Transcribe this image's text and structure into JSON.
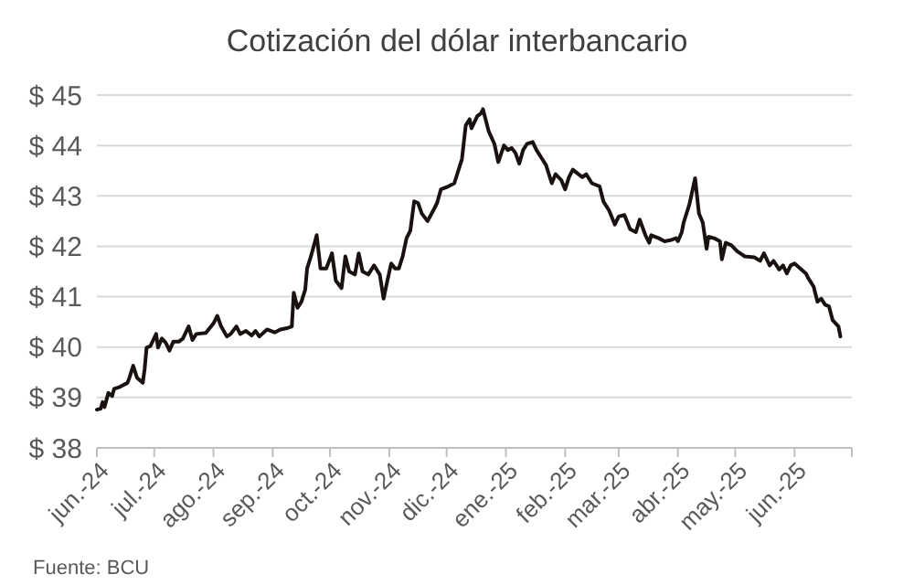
{
  "chart_data": {
    "type": "line",
    "title": "Cotización del dólar interbancario",
    "annotations": [
      "Fuente: BCU"
    ],
    "x": [
      "2024-06-01",
      "2024-06-03",
      "2024-06-04",
      "2024-06-05",
      "2024-06-07",
      "2024-06-09",
      "2024-06-10",
      "2024-06-13",
      "2024-06-17",
      "2024-06-18",
      "2024-06-20",
      "2024-06-22",
      "2024-06-25",
      "2024-06-26",
      "2024-06-27",
      "2024-06-29",
      "2024-07-02",
      "2024-07-03",
      "2024-07-05",
      "2024-07-07",
      "2024-07-09",
      "2024-07-11",
      "2024-07-14",
      "2024-07-16",
      "2024-07-19",
      "2024-07-21",
      "2024-07-23",
      "2024-07-28",
      "2024-08-01",
      "2024-08-03",
      "2024-08-05",
      "2024-08-08",
      "2024-08-10",
      "2024-08-13",
      "2024-08-15",
      "2024-08-18",
      "2024-08-21",
      "2024-08-23",
      "2024-08-25",
      "2024-08-29",
      "2024-09-02",
      "2024-09-05",
      "2024-09-09",
      "2024-09-11",
      "2024-09-12",
      "2024-09-14",
      "2024-09-16",
      "2024-09-18",
      "2024-09-19",
      "2024-09-21",
      "2024-09-24",
      "2024-09-26",
      "2024-09-29",
      "2024-10-02",
      "2024-10-04",
      "2024-10-07",
      "2024-10-09",
      "2024-10-11",
      "2024-10-14",
      "2024-10-16",
      "2024-10-18",
      "2024-10-21",
      "2024-10-24",
      "2024-10-27",
      "2024-10-29",
      "2024-10-31",
      "2024-11-02",
      "2024-11-04",
      "2024-11-06",
      "2024-11-08",
      "2024-11-10",
      "2024-11-12",
      "2024-11-14",
      "2024-11-16",
      "2024-11-18",
      "2024-11-21",
      "2024-11-24",
      "2024-11-26",
      "2024-11-28",
      "2024-12-02",
      "2024-12-05",
      "2024-12-09",
      "2024-12-11",
      "2024-12-13",
      "2024-12-14",
      "2024-12-17",
      "2024-12-19",
      "2024-12-20",
      "2024-12-23",
      "2024-12-26",
      "2024-12-28",
      "2024-12-31",
      "2025-01-02",
      "2025-01-04",
      "2025-01-06",
      "2025-01-08",
      "2025-01-10",
      "2025-01-12",
      "2025-01-15",
      "2025-01-17",
      "2025-01-20",
      "2025-01-22",
      "2025-01-25",
      "2025-01-27",
      "2025-01-30",
      "2025-02-01",
      "2025-02-03",
      "2025-02-05",
      "2025-02-08",
      "2025-02-10",
      "2025-02-12",
      "2025-02-15",
      "2025-02-19",
      "2025-02-21",
      "2025-02-24",
      "2025-02-27",
      "2025-03-01",
      "2025-03-04",
      "2025-03-07",
      "2025-03-10",
      "2025-03-12",
      "2025-03-15",
      "2025-03-17",
      "2025-03-18",
      "2025-03-22",
      "2025-03-25",
      "2025-03-28",
      "2025-03-31",
      "2025-04-01",
      "2025-04-03",
      "2025-04-04",
      "2025-04-07",
      "2025-04-10",
      "2025-04-12",
      "2025-04-14",
      "2025-04-16",
      "2025-04-17",
      "2025-04-20",
      "2025-04-23",
      "2025-04-24",
      "2025-04-26",
      "2025-04-29",
      "2025-05-02",
      "2025-05-06",
      "2025-05-11",
      "2025-05-14",
      "2025-05-16",
      "2025-05-19",
      "2025-05-21",
      "2025-05-24",
      "2025-05-26",
      "2025-05-28",
      "2025-05-30",
      "2025-06-01",
      "2025-06-04",
      "2025-06-07",
      "2025-06-08",
      "2025-06-11",
      "2025-06-13",
      "2025-06-15",
      "2025-06-17",
      "2025-06-19",
      "2025-06-21",
      "2025-06-24",
      "2025-06-25"
    ],
    "series": [
      {
        "color": "#1a1210",
        "values": [
          38.76,
          38.78,
          38.91,
          38.81,
          39.09,
          39.03,
          39.17,
          39.21,
          39.29,
          39.39,
          39.63,
          39.39,
          39.29,
          39.57,
          39.99,
          40.02,
          40.26,
          39.99,
          40.17,
          40.09,
          39.93,
          40.11,
          40.11,
          40.17,
          40.41,
          40.14,
          40.26,
          40.28,
          40.47,
          40.62,
          40.41,
          40.21,
          40.26,
          40.41,
          40.26,
          40.32,
          40.23,
          40.32,
          40.21,
          40.35,
          40.29,
          40.35,
          40.38,
          40.41,
          41.08,
          40.78,
          40.9,
          41.14,
          41.56,
          41.8,
          42.22,
          41.56,
          41.56,
          41.86,
          41.32,
          41.17,
          41.8,
          41.5,
          41.44,
          41.86,
          41.5,
          41.44,
          41.62,
          41.44,
          40.96,
          41.32,
          41.66,
          41.56,
          41.56,
          41.8,
          42.16,
          42.31,
          42.89,
          42.86,
          42.65,
          42.5,
          42.71,
          42.86,
          43.13,
          43.19,
          43.25,
          43.73,
          44.4,
          44.52,
          44.34,
          44.58,
          44.64,
          44.72,
          44.28,
          44.03,
          43.67,
          44.0,
          43.91,
          43.95,
          43.85,
          43.64,
          43.91,
          44.03,
          44.07,
          43.91,
          43.73,
          43.61,
          43.25,
          43.43,
          43.31,
          43.13,
          43.37,
          43.52,
          43.43,
          43.37,
          43.43,
          43.25,
          43.19,
          42.89,
          42.71,
          42.43,
          42.59,
          42.62,
          42.34,
          42.28,
          42.53,
          42.22,
          42.07,
          42.22,
          42.16,
          42.1,
          42.12,
          42.16,
          42.1,
          42.28,
          42.47,
          42.83,
          43.35,
          42.65,
          42.47,
          41.95,
          42.19,
          42.16,
          42.1,
          41.74,
          42.07,
          42.02,
          41.9,
          41.8,
          41.78,
          41.71,
          41.86,
          41.62,
          41.71,
          41.54,
          41.62,
          41.46,
          41.62,
          41.66,
          41.56,
          41.46,
          41.38,
          41.2,
          40.9,
          40.96,
          40.84,
          40.81,
          40.53,
          40.41,
          40.21
        ]
      }
    ],
    "xlim": [
      "2024-06-01",
      "2025-07-01"
    ],
    "xticks": [
      {
        "value": "2024-06-01",
        "label": "jun.-24"
      },
      {
        "value": "2024-07-01",
        "label": "jul.-24"
      },
      {
        "value": "2024-08-01",
        "label": "ago.-24"
      },
      {
        "value": "2024-09-01",
        "label": "sep.-24"
      },
      {
        "value": "2024-10-01",
        "label": "oct.-24"
      },
      {
        "value": "2024-11-01",
        "label": "nov.-24"
      },
      {
        "value": "2024-12-01",
        "label": "dic.-24"
      },
      {
        "value": "2025-01-01",
        "label": "ene.-25"
      },
      {
        "value": "2025-02-01",
        "label": "feb.-25"
      },
      {
        "value": "2025-03-01",
        "label": "mar.-25"
      },
      {
        "value": "2025-04-01",
        "label": "abr.-25"
      },
      {
        "value": "2025-05-01",
        "label": "may.-25"
      },
      {
        "value": "2025-06-01",
        "label": "jun.-25"
      },
      {
        "value": "2025-07-01",
        "label": null
      }
    ],
    "ylim": [
      38,
      45
    ],
    "yticks": [
      {
        "value": 38,
        "label": "$ 38"
      },
      {
        "value": 39,
        "label": "$ 39"
      },
      {
        "value": 40,
        "label": "$ 40"
      },
      {
        "value": 41,
        "label": "$ 41"
      },
      {
        "value": 42,
        "label": "$ 42"
      },
      {
        "value": 43,
        "label": "$ 43"
      },
      {
        "value": 44,
        "label": "$ 44"
      },
      {
        "value": 45,
        "label": "$ 45"
      }
    ],
    "grid": "y",
    "marker": "none",
    "line_style": "solid"
  }
}
